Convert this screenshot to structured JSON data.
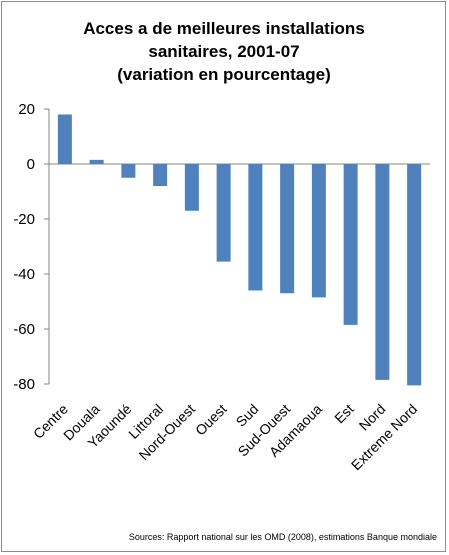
{
  "chart_data": {
    "type": "bar",
    "title_lines": [
      "Acces a de meilleures installations",
      "sanitaires, 2001-07",
      "(variation en pourcentage)"
    ],
    "categories": [
      "Centre",
      "Douala",
      "Yaoundé",
      "Littoral",
      "Nord-Ouest",
      "Ouest",
      "Sud",
      "Sud-Ouest",
      "Adamaoua",
      "Est",
      "Nord",
      "Extreme Nord"
    ],
    "values": [
      18,
      1.5,
      -5,
      -8,
      -17,
      -35.5,
      -46,
      -47,
      -48.5,
      -58.5,
      -78.5,
      -80.5
    ],
    "ylim": [
      -80,
      20
    ],
    "yticks": [
      20,
      0,
      -20,
      -40,
      -60,
      -80
    ],
    "grid": false,
    "bar_color": "#4f81bd",
    "source": "Sources: Rapport national sur les OMD (2008), estimations Banque mondiale"
  }
}
